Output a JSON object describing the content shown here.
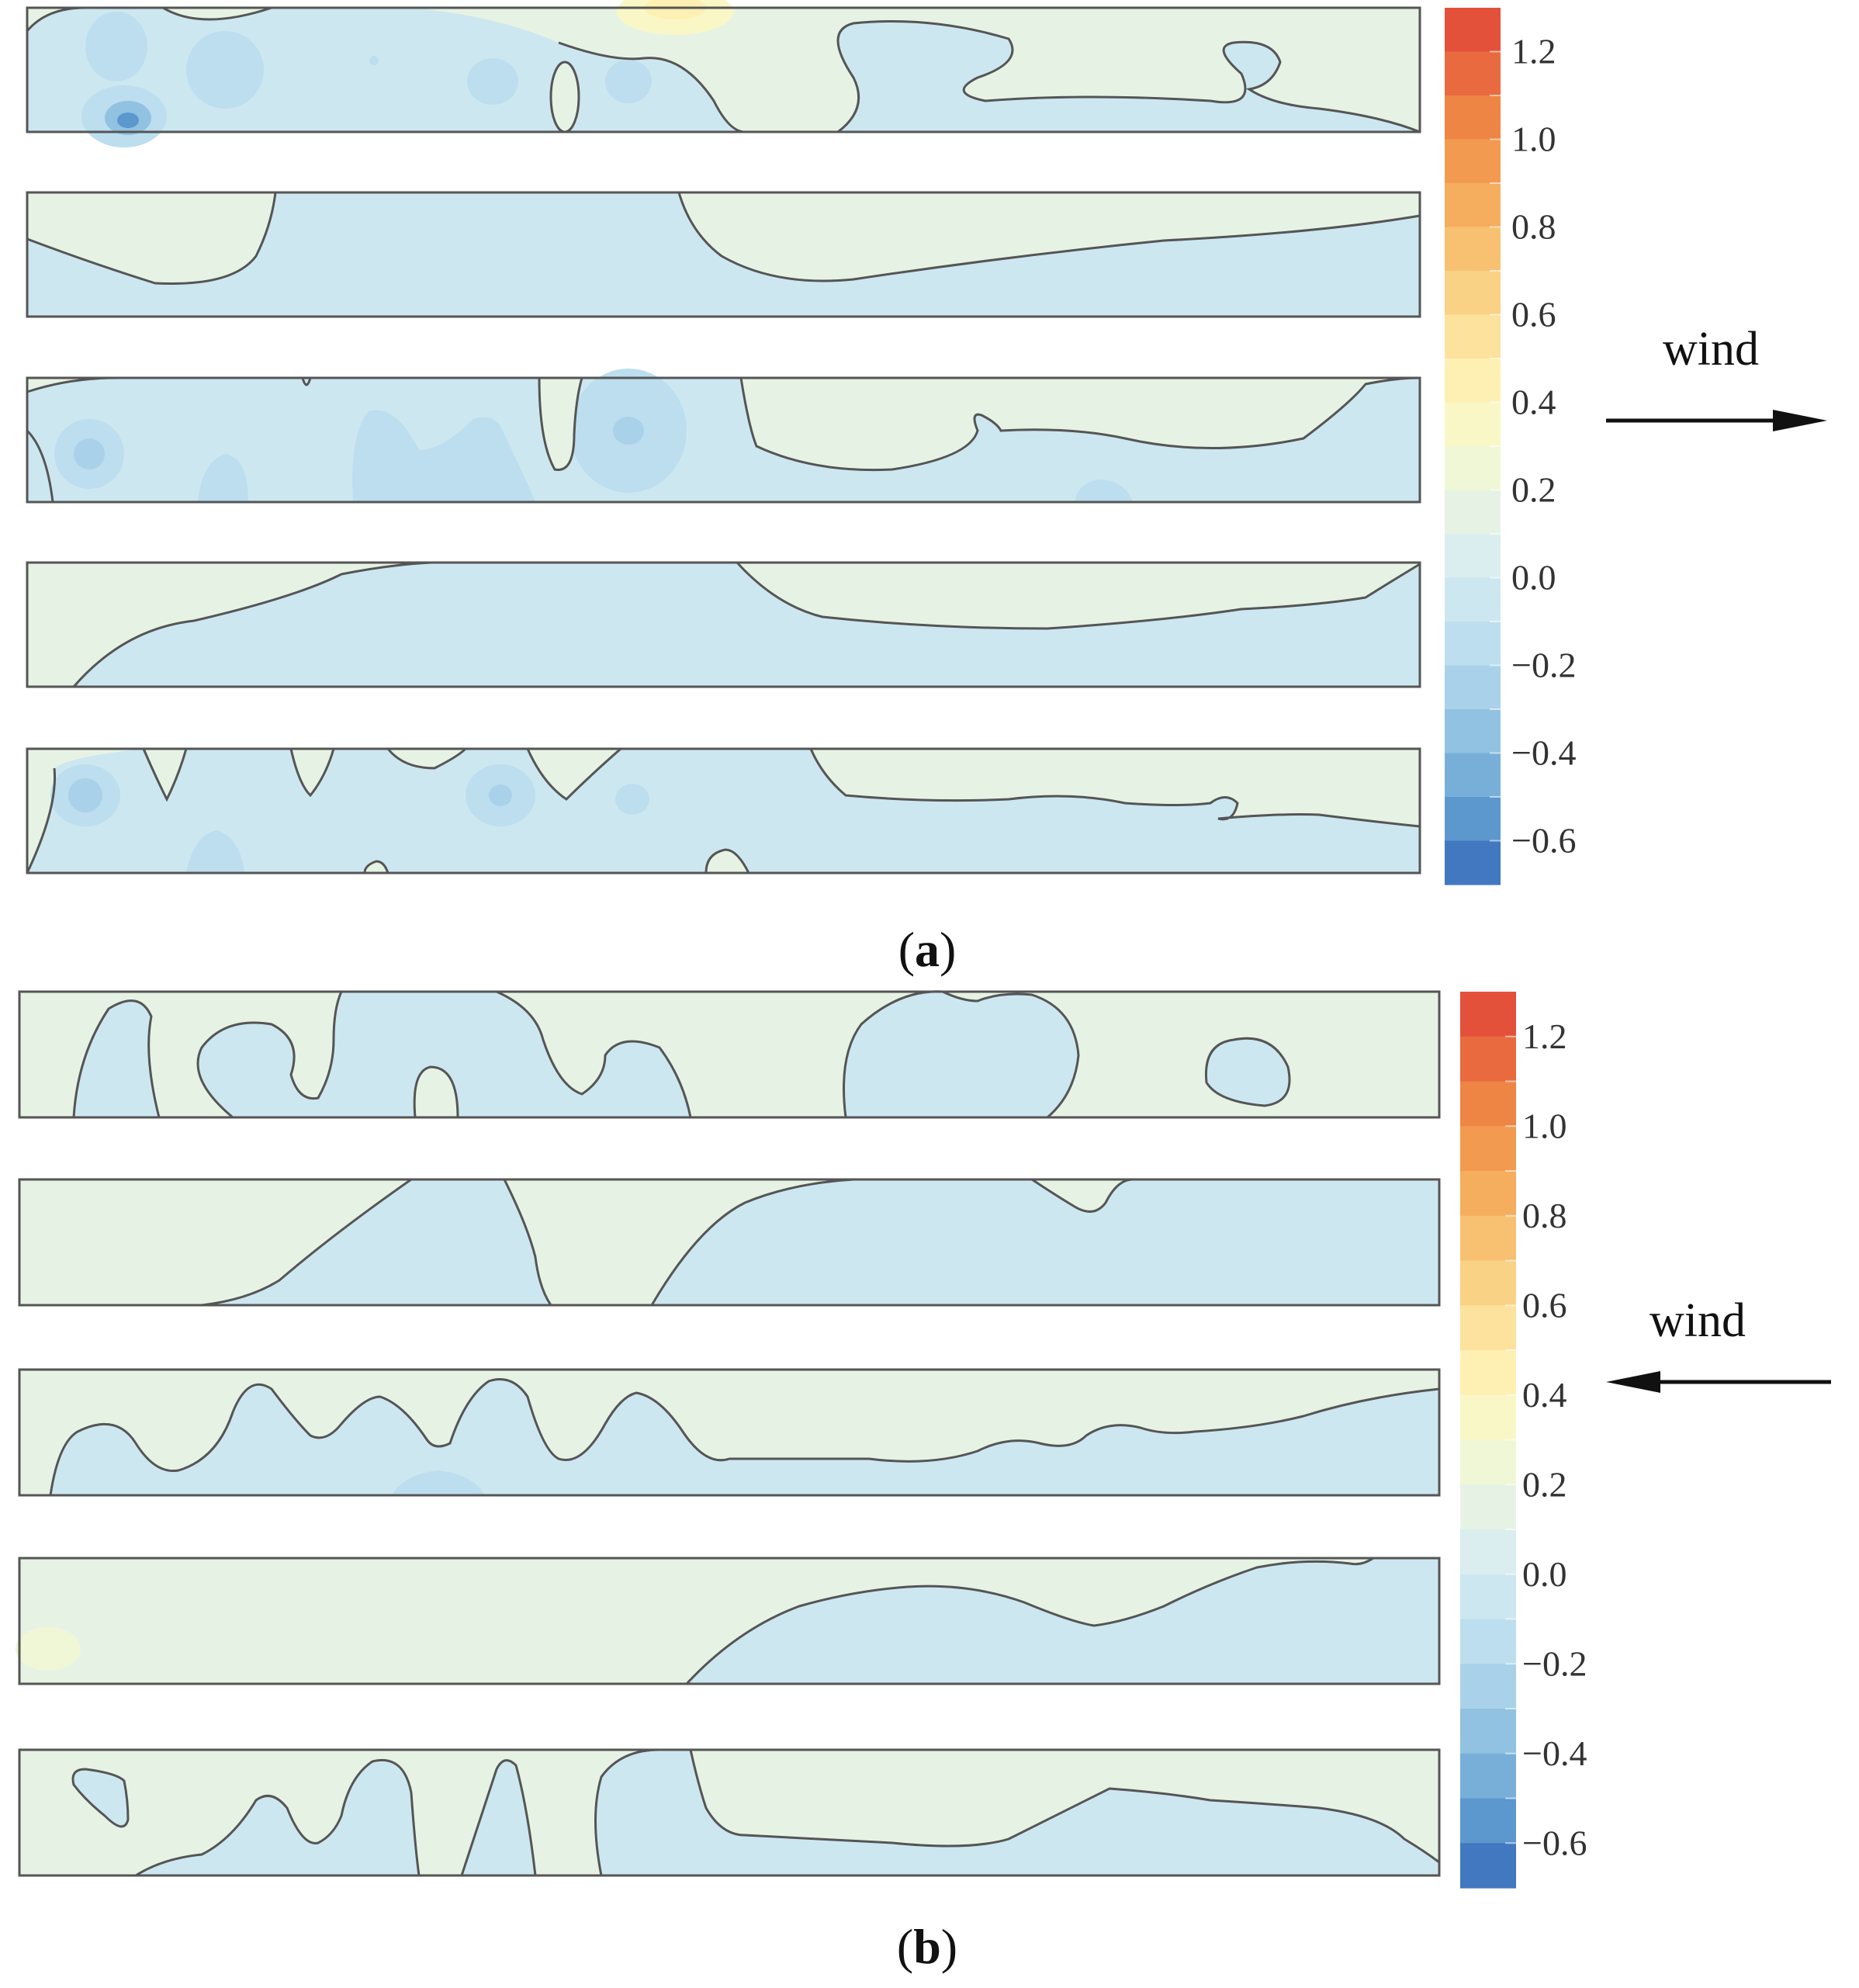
{
  "chart_data": [
    {
      "type": "heatmap",
      "panel_label": "a",
      "caption_open": "(",
      "caption_close": ")",
      "wind_label": "wind",
      "wind_direction": "right",
      "colorbar": {
        "min": -0.7,
        "max": 1.3,
        "step": 0.1,
        "ticks": [
          "1.2",
          "1.0",
          "0.8",
          "0.6",
          "0.4",
          "0.2",
          "0.0",
          "−0.2",
          "−0.4",
          "−0.6"
        ],
        "tick_values": [
          1.2,
          1.0,
          0.8,
          0.6,
          0.4,
          0.2,
          0.0,
          -0.2,
          -0.4,
          -0.6
        ]
      },
      "strips": 5,
      "zero_contour_shown": true
    },
    {
      "type": "heatmap",
      "panel_label": "b",
      "caption_open": "(",
      "caption_close": ")",
      "wind_label": "wind",
      "wind_direction": "left",
      "colorbar": {
        "min": -0.7,
        "max": 1.3,
        "step": 0.1,
        "ticks": [
          "1.2",
          "1.0",
          "0.8",
          "0.6",
          "0.4",
          "0.2",
          "0.0",
          "−0.2",
          "−0.4",
          "−0.6"
        ],
        "tick_values": [
          1.2,
          1.0,
          0.8,
          0.6,
          0.4,
          0.2,
          0.0,
          -0.2,
          -0.4,
          -0.6
        ]
      },
      "strips": 5,
      "zero_contour_shown": true
    }
  ],
  "colors": {
    "band_colors_top_to_bottom": [
      "#e4513a",
      "#e86a3e",
      "#ee8545",
      "#f29a50",
      "#f5ad5e",
      "#f8c172",
      "#fad286",
      "#fce29c",
      "#fdf0b2",
      "#f9f7c6",
      "#f0f7d6",
      "#e6f3e4",
      "#daeef0",
      "#cde7f1",
      "#bcdeee",
      "#a9d2ea",
      "#92c2e2",
      "#78afd9",
      "#5c97ce",
      "#4178c0"
    ],
    "positive_field": "#e6f3e4",
    "negative_field": "#cde7f1",
    "contour": "#555555",
    "frame": "#555555"
  }
}
